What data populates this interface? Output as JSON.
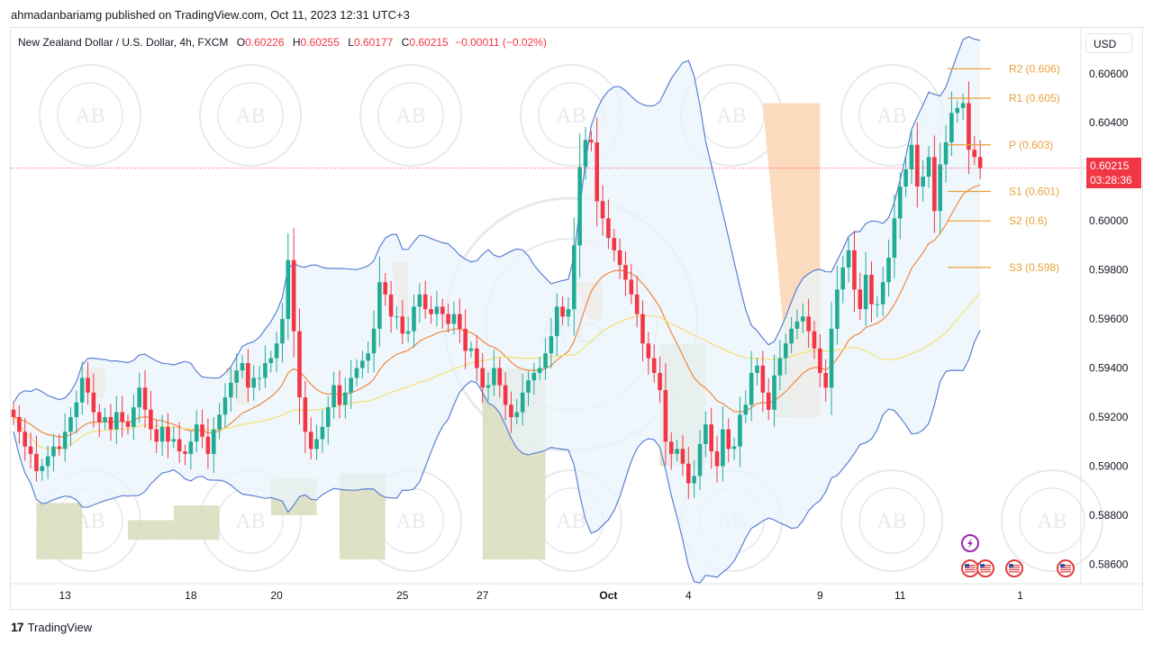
{
  "publisher": "ahmadanbariamg published on TradingView.com, Oct 11, 2023 12:31 UTC+3",
  "legend": {
    "symbol": "New Zealand Dollar / U.S. Dollar, 4h, FXCM",
    "open_label": "O",
    "open": "0.60226",
    "high_label": "H",
    "high": "0.60255",
    "low_label": "L",
    "low": "0.60177",
    "close_label": "C",
    "close": "0.60215",
    "change": "−0.00011 (−0.02%)"
  },
  "currency_button": "USD",
  "current_price": {
    "price": "0.60215",
    "countdown": "03:28:36"
  },
  "footer_brand": "TradingView",
  "footer_mark": "17",
  "watermark": "AB",
  "colors": {
    "up": "#22ab94",
    "down": "#f23645",
    "band_line": "#5b7fd4",
    "band_fill": "#eaf4fc",
    "ma_orange": "#f0883e",
    "ma_yellow": "#f5e27a",
    "volume_profile": "#d8dcbc",
    "supply_zone": "#fbd3b2",
    "pivot": "#e8a23a"
  },
  "chart_data": {
    "type": "candlestick",
    "title": "New Zealand Dollar / U.S. Dollar, 4h, FXCM",
    "ylim": [
      0.5855,
      0.6068
    ],
    "y_ticks": [
      "0.60600",
      "0.60400",
      "0.60200",
      "0.60000",
      "0.59800",
      "0.59600",
      "0.59400",
      "0.59200",
      "0.59000",
      "0.58800",
      "0.58600"
    ],
    "y_tick_values": [
      0.606,
      0.604,
      0.602,
      0.6,
      0.598,
      0.596,
      0.594,
      0.592,
      0.59,
      0.588,
      0.586
    ],
    "x_ticks": [
      {
        "label": "13",
        "bar": 9
      },
      {
        "label": "18",
        "bar": 31
      },
      {
        "label": "20",
        "bar": 46
      },
      {
        "label": "25",
        "bar": 68
      },
      {
        "label": "27",
        "bar": 82
      },
      {
        "label": "Oct",
        "bar": 104,
        "bold": true
      },
      {
        "label": "4",
        "bar": 118
      },
      {
        "label": "9",
        "bar": 141
      },
      {
        "label": "11",
        "bar": 155
      },
      {
        "label": "1",
        "bar": 176
      }
    ],
    "pivot_levels": [
      {
        "label": "R2 (0.606)",
        "value": 0.6062
      },
      {
        "label": "R1 (0.605)",
        "value": 0.605
      },
      {
        "label": "P (0.603)",
        "value": 0.6031
      },
      {
        "label": "S1 (0.601)",
        "value": 0.6012
      },
      {
        "label": "S2 (0.6)",
        "value": 0.6
      },
      {
        "label": "S3 (0.598)",
        "value": 0.5981
      }
    ],
    "closes": [
      0.592,
      0.5914,
      0.5908,
      0.5905,
      0.5898,
      0.59,
      0.5904,
      0.5908,
      0.5907,
      0.5914,
      0.592,
      0.5926,
      0.5936,
      0.593,
      0.5922,
      0.5918,
      0.592,
      0.5915,
      0.5922,
      0.5918,
      0.5916,
      0.5924,
      0.5932,
      0.5923,
      0.5915,
      0.591,
      0.5916,
      0.591,
      0.5911,
      0.5906,
      0.5905,
      0.591,
      0.5917,
      0.5912,
      0.5905,
      0.5915,
      0.5921,
      0.5928,
      0.5934,
      0.5939,
      0.5942,
      0.5932,
      0.5936,
      0.5936,
      0.5942,
      0.5944,
      0.595,
      0.596,
      0.5984,
      0.5955,
      0.5928,
      0.5914,
      0.5907,
      0.5911,
      0.5916,
      0.5924,
      0.5933,
      0.5925,
      0.593,
      0.5936,
      0.594,
      0.5943,
      0.5946,
      0.5956,
      0.5975,
      0.597,
      0.5961,
      0.5961,
      0.5954,
      0.5955,
      0.5965,
      0.597,
      0.5964,
      0.5962,
      0.5965,
      0.5962,
      0.5958,
      0.5962,
      0.5956,
      0.5947,
      0.5948,
      0.594,
      0.5932,
      0.5933,
      0.594,
      0.5933,
      0.5925,
      0.592,
      0.5922,
      0.593,
      0.5935,
      0.5938,
      0.594,
      0.5946,
      0.5953,
      0.5965,
      0.5961,
      0.5964,
      0.599,
      0.6022,
      0.6033,
      0.6032,
      0.6008,
      0.6001,
      0.5993,
      0.5988,
      0.5982,
      0.5976,
      0.597,
      0.5962,
      0.595,
      0.5944,
      0.5938,
      0.5931,
      0.591,
      0.5905,
      0.5907,
      0.5901,
      0.5893,
      0.5896,
      0.5909,
      0.5917,
      0.5906,
      0.59,
      0.5915,
      0.5907,
      0.5908,
      0.5921,
      0.5925,
      0.5938,
      0.5941,
      0.593,
      0.5923,
      0.5937,
      0.5944,
      0.595,
      0.5956,
      0.5959,
      0.5961,
      0.5955,
      0.5948,
      0.5938,
      0.5932,
      0.5956,
      0.5972,
      0.5981,
      0.5988,
      0.5972,
      0.5964,
      0.5978,
      0.5966,
      0.5966,
      0.5975,
      0.5985,
      0.6001,
      0.6014,
      0.6021,
      0.6031,
      0.6014,
      0.6018,
      0.6026,
      0.6004,
      0.6023,
      0.6032,
      0.6044,
      0.6046,
      0.6048,
      0.6029,
      0.6026,
      0.60215
    ],
    "opens_note": "open of each bar equals close of previous bar"
  }
}
